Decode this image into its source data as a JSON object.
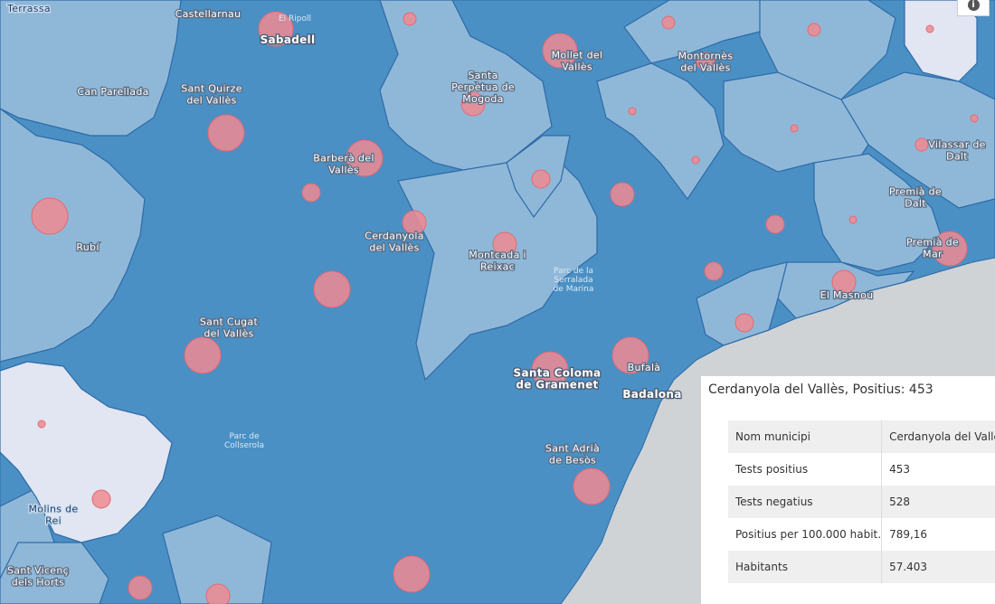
{
  "map": {
    "colors": {
      "sea": "#cfd3d6",
      "dark_region": "#4a90c4",
      "mid_region": "#8fb8d8",
      "light_region": "#e1e6f2",
      "border": "#2f6aa8",
      "bubble": "#f08a92"
    },
    "places": {
      "terrassa": "Terrassa",
      "castellarnau": "Castellarnau",
      "el_ripoll": "El Ripoll",
      "sabadell": "Sabadell",
      "can_parellada": "Can Parellada",
      "sant_quirze": "Sant Quirze del Vallès",
      "santa_perpetua": "Santa Perpètua de Mogoda",
      "mollet": "Mollet del Vallès",
      "montornes": "Montornès del Vallès",
      "barbera": "Barberà del Vallès",
      "vilassar": "Vilassar de Dalt",
      "rubi": "Rubí",
      "cerdanyola": "Cerdanyola del Vallès",
      "montcada": "Montcada i Reixac",
      "premia_dalt": "Premià de Dalt",
      "premia_mar": "Premià de Mar",
      "parc_serralada": "Parc de la Serralada de Marina",
      "el_masnou": "El Masnou",
      "sant_cugat": "Sant Cugat del Vallès",
      "santa_coloma": "Santa Coloma de Gramenet",
      "bufala": "Bufalà",
      "badalona": "Badalona",
      "parc_collserola": "Parc de Collserola",
      "sant_adria": "Sant Adrià de Besòs",
      "molins": "Molins de Rei",
      "sant_vicenc": "Sant Vicenç dels Horts"
    }
  },
  "info_button": {
    "icon": "info-icon",
    "glyph": "i"
  },
  "popup": {
    "title": "Cerdanyola del Vallès, Positius: 453",
    "rows": [
      {
        "label": "Nom municipi",
        "value": "Cerdanyola del Vallès"
      },
      {
        "label": "Tests positius",
        "value": "453"
      },
      {
        "label": "Tests negatius",
        "value": "528"
      },
      {
        "label": "Positius per 100.000 habit.",
        "value": "789,16"
      },
      {
        "label": "Habitants",
        "value": "57.403"
      }
    ]
  }
}
